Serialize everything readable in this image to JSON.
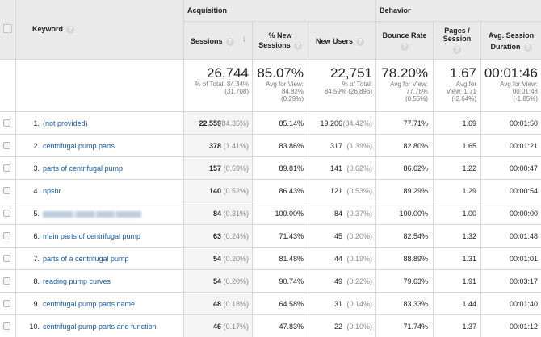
{
  "header": {
    "groups": [
      {
        "label": "Acquisition"
      },
      {
        "label": "Behavior"
      }
    ],
    "columns": {
      "keyword": "Keyword",
      "sessions": "Sessions",
      "pct_new_sessions_l1": "% New",
      "pct_new_sessions_l2": "Sessions",
      "new_users": "New Users",
      "bounce_rate": "Bounce Rate",
      "pages_session_l1": "Pages /",
      "pages_session_l2": "Session",
      "avg_duration_l1": "Avg. Session",
      "avg_duration_l2": "Duration"
    },
    "help_icon": "?",
    "sort_icon": "↓"
  },
  "summary": {
    "sessions": {
      "value": "26,744",
      "l1": "% of Total: 84.34%",
      "l2": "(31,708)"
    },
    "pct_new_sessions": {
      "value": "85.07%",
      "l1": "Avg for View:",
      "l2": "84.82%",
      "l3": "(0.29%)"
    },
    "new_users": {
      "value": "22,751",
      "l1": "% of Total:",
      "l2": "84.59% (26,896)"
    },
    "bounce_rate": {
      "value": "78.20%",
      "l1": "Avg for View:",
      "l2": "77.78%",
      "l3": "(0.55%)"
    },
    "pages_session": {
      "value": "1.67",
      "l1": "Avg for",
      "l2": "View: 1.71",
      "l3": "(-2.64%)"
    },
    "avg_duration": {
      "value": "00:01:46",
      "l1": "Avg for View:",
      "l2": "00:01:48",
      "l3": "(-1.85%)"
    }
  },
  "rows": [
    {
      "idx": "1.",
      "keyword": "(not provided)",
      "sessions": "22,559",
      "sessions_pct": "(84.35%)",
      "pct_new": "85.14%",
      "new_users": "19,206",
      "new_users_pct": "(84.42%)",
      "bounce": "77.71%",
      "pages": "1.69",
      "duration": "00:01:50"
    },
    {
      "idx": "2.",
      "keyword": "centrifugal pump parts",
      "sessions": "378",
      "sessions_pct": "(1.41%)",
      "pct_new": "83.86%",
      "new_users": "317",
      "new_users_pct": "(1.39%)",
      "bounce": "82.80%",
      "pages": "1.65",
      "duration": "00:01:21"
    },
    {
      "idx": "3.",
      "keyword": "parts of centrifugal pump",
      "sessions": "157",
      "sessions_pct": "(0.59%)",
      "pct_new": "89.81%",
      "new_users": "141",
      "new_users_pct": "(0.62%)",
      "bounce": "86.62%",
      "pages": "1.22",
      "duration": "00:00:47"
    },
    {
      "idx": "4.",
      "keyword": "npshr",
      "sessions": "140",
      "sessions_pct": "(0.52%)",
      "pct_new": "86.43%",
      "new_users": "121",
      "new_users_pct": "(0.53%)",
      "bounce": "89.29%",
      "pages": "1.29",
      "duration": "00:00:54"
    },
    {
      "idx": "5.",
      "keyword": "",
      "blurred": true,
      "sessions": "84",
      "sessions_pct": "(0.31%)",
      "pct_new": "100.00%",
      "new_users": "84",
      "new_users_pct": "(0.37%)",
      "bounce": "100.00%",
      "pages": "1.00",
      "duration": "00:00:00"
    },
    {
      "idx": "6.",
      "keyword": "main parts of centrifugal pump",
      "sessions": "63",
      "sessions_pct": "(0.24%)",
      "pct_new": "71.43%",
      "new_users": "45",
      "new_users_pct": "(0.20%)",
      "bounce": "82.54%",
      "pages": "1.32",
      "duration": "00:01:48"
    },
    {
      "idx": "7.",
      "keyword": "parts of a centrifugal pump",
      "sessions": "54",
      "sessions_pct": "(0.20%)",
      "pct_new": "81.48%",
      "new_users": "44",
      "new_users_pct": "(0.19%)",
      "bounce": "88.89%",
      "pages": "1.31",
      "duration": "00:01:01"
    },
    {
      "idx": "8.",
      "keyword": "reading pump curves",
      "sessions": "54",
      "sessions_pct": "(0.20%)",
      "pct_new": "90.74%",
      "new_users": "49",
      "new_users_pct": "(0.22%)",
      "bounce": "79.63%",
      "pages": "1.91",
      "duration": "00:03:17"
    },
    {
      "idx": "9.",
      "keyword": "centrifugal pump parts name",
      "sessions": "48",
      "sessions_pct": "(0.18%)",
      "pct_new": "64.58%",
      "new_users": "31",
      "new_users_pct": "(0.14%)",
      "bounce": "83.33%",
      "pages": "1.44",
      "duration": "00:01:40"
    },
    {
      "idx": "10.",
      "keyword": "centrifugal pump parts and function",
      "sessions": "46",
      "sessions_pct": "(0.17%)",
      "pct_new": "47.83%",
      "new_users": "22",
      "new_users_pct": "(0.10%)",
      "bounce": "71.74%",
      "pages": "1.37",
      "duration": "00:01:12"
    }
  ]
}
